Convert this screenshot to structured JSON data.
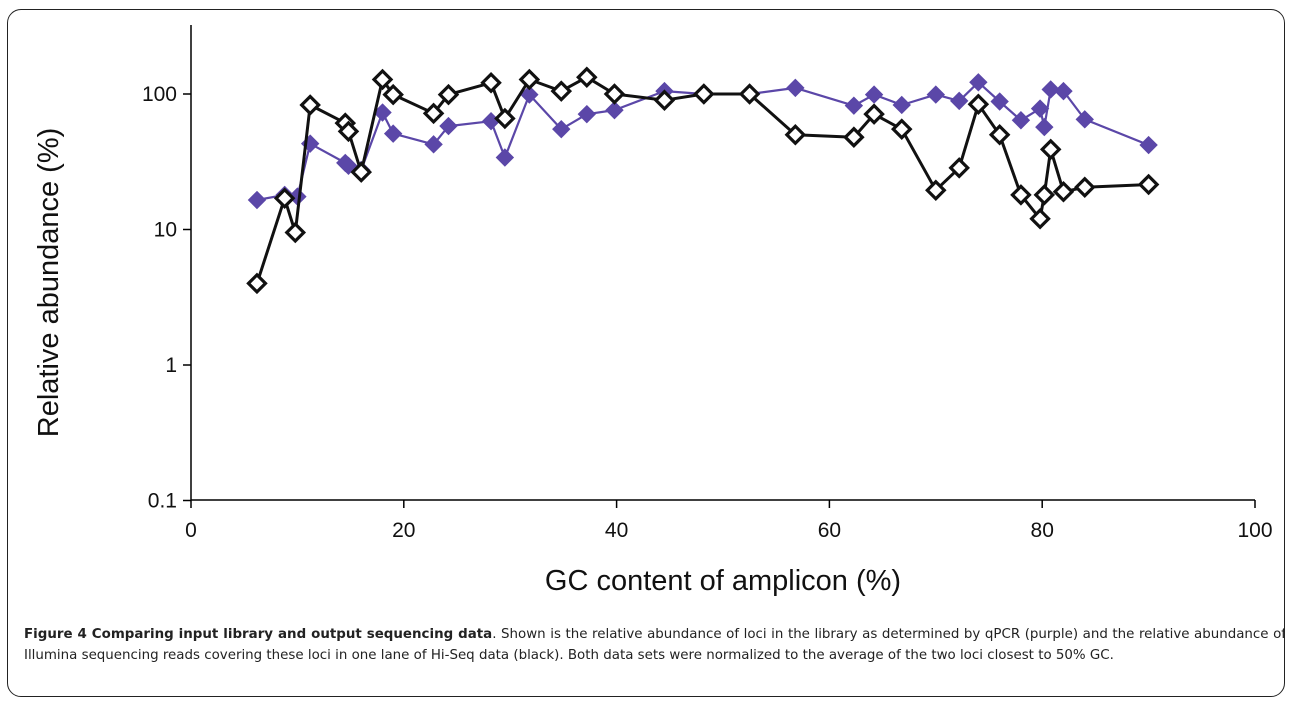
{
  "chart_data": {
    "type": "line",
    "xlabel": "GC content of amplicon (%)",
    "ylabel": "Relative abundance (%)",
    "xlim": [
      0,
      100
    ],
    "ylim": [
      0.1,
      300
    ],
    "yscale": "log",
    "x_ticks": [
      "0",
      "20",
      "40",
      "60",
      "80",
      "100"
    ],
    "y_ticks": [
      "0.1",
      "1",
      "10",
      "100"
    ],
    "grid": false,
    "legend": "none",
    "series": [
      {
        "color": "#5b47a8",
        "marker": "filled-diamond",
        "points": [
          [
            6.2,
            16.5
          ],
          [
            8.8,
            18.0
          ],
          [
            10.0,
            17.5
          ],
          [
            11.2,
            43.0
          ],
          [
            14.5,
            31.0
          ],
          [
            14.8,
            29.5
          ],
          [
            16.0,
            27.5
          ],
          [
            18.0,
            73.0
          ],
          [
            19.0,
            51.0
          ],
          [
            22.8,
            42.5
          ],
          [
            24.2,
            58.0
          ],
          [
            28.2,
            63.0
          ],
          [
            29.5,
            34.0
          ],
          [
            31.8,
            99.0
          ],
          [
            34.8,
            55.0
          ],
          [
            37.2,
            71.0
          ],
          [
            39.8,
            76.0
          ],
          [
            44.5,
            105.0
          ],
          [
            48.2,
            100.0
          ],
          [
            52.5,
            100.0
          ],
          [
            56.8,
            111.0
          ],
          [
            62.3,
            82.0
          ],
          [
            64.2,
            99.0
          ],
          [
            66.8,
            83.0
          ],
          [
            70.0,
            99.0
          ],
          [
            72.2,
            89.0
          ],
          [
            74.0,
            122.0
          ],
          [
            76.0,
            88.0
          ],
          [
            78.0,
            64.0
          ],
          [
            79.8,
            78.0
          ],
          [
            80.2,
            57.0
          ],
          [
            80.8,
            108.0
          ],
          [
            82.0,
            105.0
          ],
          [
            84.0,
            65.0
          ],
          [
            90.0,
            42.0
          ]
        ]
      },
      {
        "color": "#111111",
        "marker": "open-diamond",
        "points": [
          [
            6.2,
            4.0
          ],
          [
            8.8,
            17.0
          ],
          [
            9.8,
            9.5
          ],
          [
            11.2,
            83.0
          ],
          [
            14.5,
            61.0
          ],
          [
            14.8,
            53.0
          ],
          [
            16.0,
            26.5
          ],
          [
            18.0,
            128.0
          ],
          [
            19.0,
            99.0
          ],
          [
            22.8,
            72.0
          ],
          [
            24.2,
            99.0
          ],
          [
            28.2,
            121.0
          ],
          [
            29.5,
            66.0
          ],
          [
            31.8,
            128.0
          ],
          [
            34.8,
            105.0
          ],
          [
            37.2,
            133.0
          ],
          [
            39.8,
            100.0
          ],
          [
            44.5,
            90.0
          ],
          [
            48.2,
            100.0
          ],
          [
            52.5,
            100.0
          ],
          [
            56.8,
            50.0
          ],
          [
            62.3,
            48.0
          ],
          [
            64.2,
            71.0
          ],
          [
            66.8,
            55.0
          ],
          [
            70.0,
            19.5
          ],
          [
            72.2,
            28.5
          ],
          [
            74.0,
            84.0
          ],
          [
            76.0,
            50.0
          ],
          [
            78.0,
            18.0
          ],
          [
            79.8,
            12.0
          ],
          [
            80.2,
            18.0
          ],
          [
            80.8,
            39.0
          ],
          [
            82.0,
            19.0
          ],
          [
            84.0,
            20.5
          ],
          [
            90.0,
            21.5
          ]
        ]
      }
    ]
  },
  "caption": {
    "label": "Figure 4 Comparing input library and output sequencing data",
    "text": ". Shown is the relative abundance of loci in the library as determined by qPCR (purple) and the relative abundance of Illumina sequencing reads covering these loci in one lane of Hi-Seq data (black). Both data sets were normalized to the average of the two loci closest to 50% GC."
  }
}
